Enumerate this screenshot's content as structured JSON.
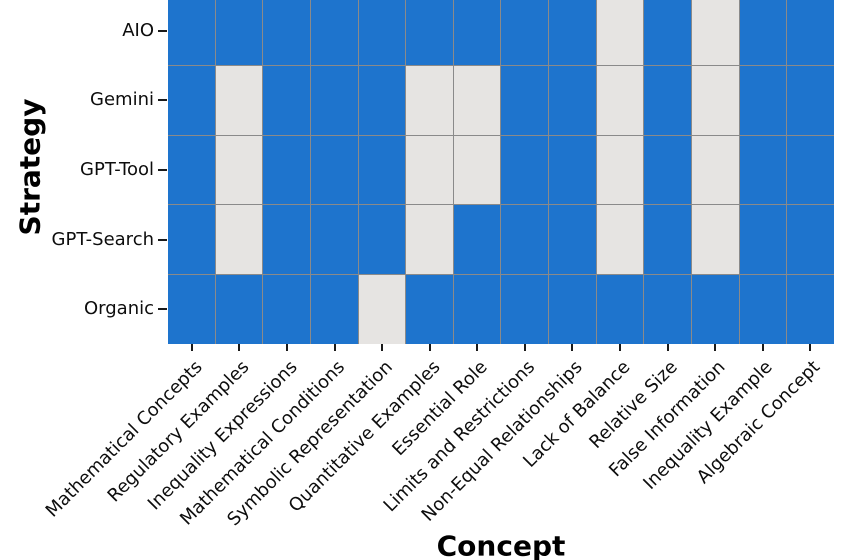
{
  "chart_data": {
    "type": "heatmap",
    "title": "",
    "xlabel": "Concept",
    "ylabel": "Strategy",
    "x_categories": [
      "Mathematical Concepts",
      "Regulatory Examples",
      "Inequality Expressions",
      "Mathematical Conditions",
      "Symbolic Representation",
      "Quantitative Examples",
      "Essential Role",
      "Limits and Restrictions",
      "Non-Equal Relationships",
      "Lack of Balance",
      "Relative Size",
      "False Information",
      "Inequality Example",
      "Algebraic Concept"
    ],
    "y_categories": [
      "AIO",
      "Gemini",
      "GPT-Tool",
      "GPT-Search",
      "Organic"
    ],
    "matrix": [
      [
        1,
        1,
        1,
        1,
        1,
        1,
        1,
        1,
        1,
        0,
        1,
        0,
        1,
        1
      ],
      [
        1,
        0,
        1,
        1,
        1,
        0,
        0,
        1,
        1,
        0,
        1,
        0,
        1,
        1
      ],
      [
        1,
        0,
        1,
        1,
        1,
        0,
        0,
        1,
        1,
        0,
        1,
        0,
        1,
        1
      ],
      [
        1,
        0,
        1,
        1,
        1,
        0,
        1,
        1,
        1,
        0,
        1,
        0,
        1,
        1
      ],
      [
        1,
        1,
        1,
        1,
        0,
        1,
        1,
        1,
        1,
        1,
        1,
        1,
        1,
        1
      ]
    ],
    "value_labels": {
      "1": "present",
      "0": "absent"
    },
    "colors": {
      "present": "#1e74cd",
      "absent": "#e6e4e2",
      "gridline": "#8a8a8a",
      "tick": "#1a1a1a"
    },
    "legend": "none",
    "grid": true,
    "x_tick_rotation_deg": 45,
    "notes": "top row partially cropped by image edge"
  }
}
